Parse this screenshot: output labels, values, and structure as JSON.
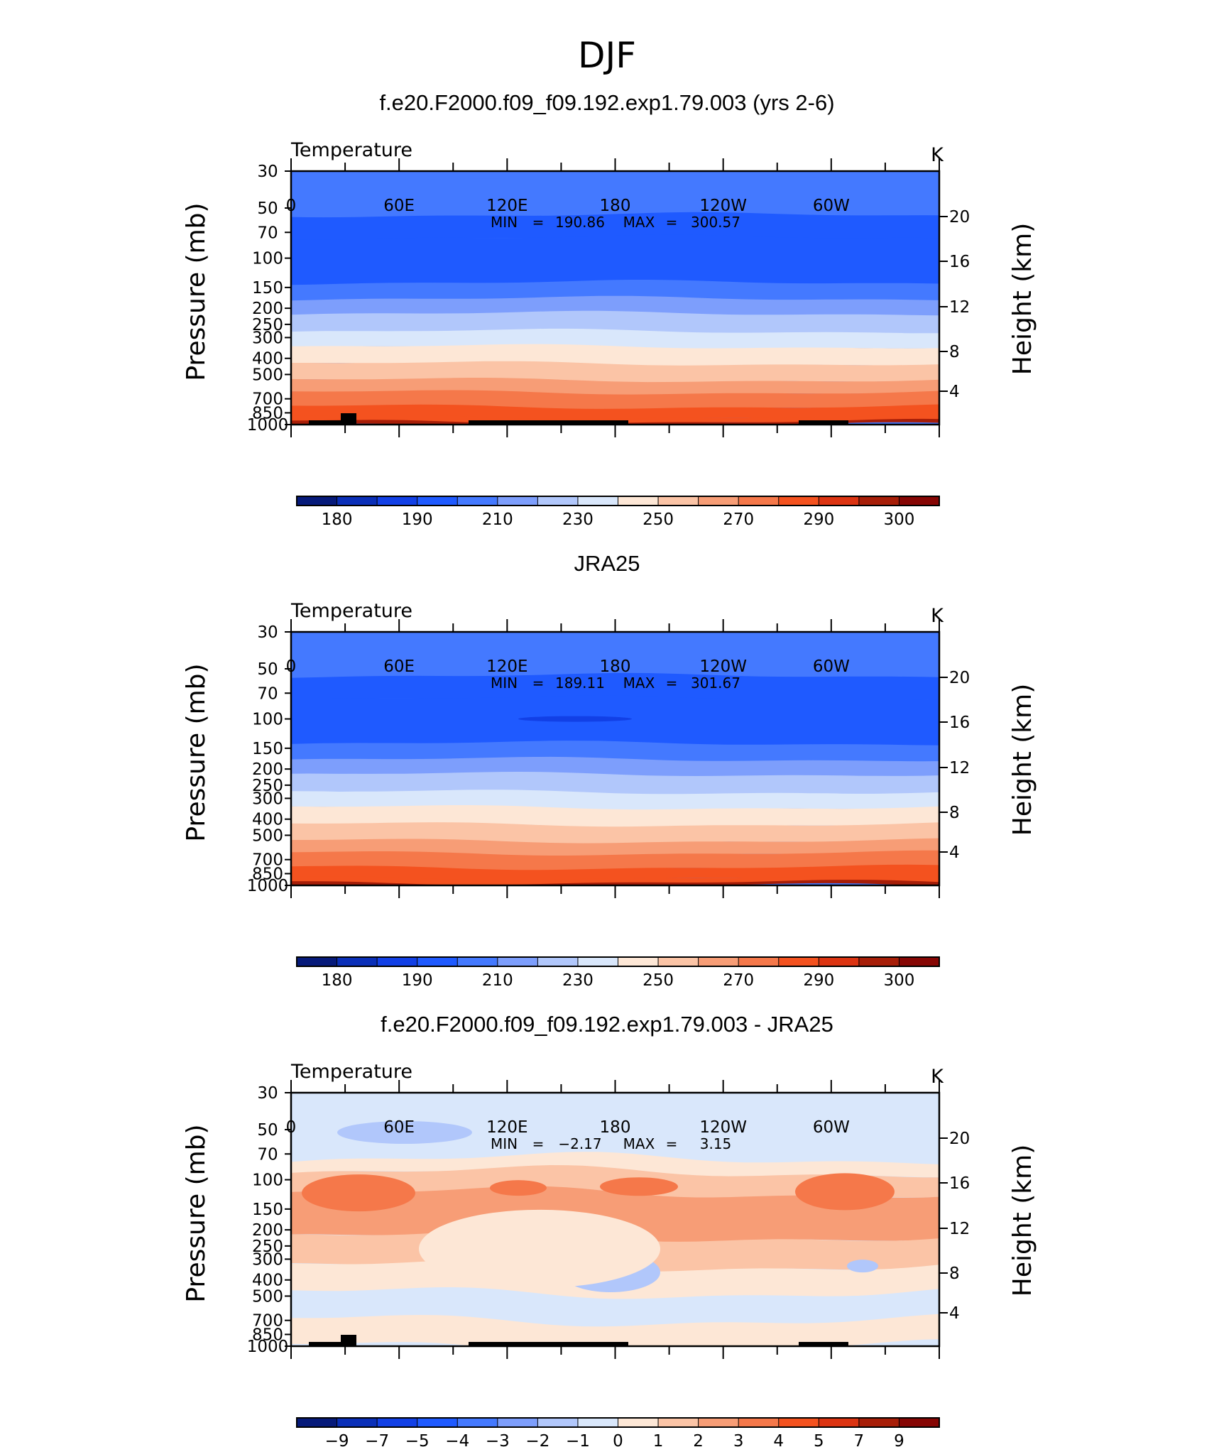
{
  "page_title": "DJF",
  "chart_data": [
    {
      "type": "contour",
      "title": "f.e20.F2000.f09_f09.192.exp1.79.003 (yrs 2-6)",
      "left_string": "Temperature",
      "right_string": "K",
      "ylabel": "Pressure (mb)",
      "ylabel_right": "Height (km)",
      "y_ticks": [
        "30",
        "50",
        "70",
        "100",
        "150",
        "200",
        "250",
        "300",
        "400",
        "500",
        "700",
        "850",
        "1000"
      ],
      "y_right_ticks": [
        "20",
        "16",
        "12",
        "8",
        "4"
      ],
      "x_ticks": [
        "0",
        "60E",
        "120E",
        "180",
        "120W",
        "60W"
      ],
      "stats": {
        "min_label": "MIN",
        "min": "190.86",
        "max_label": "MAX",
        "max": "300.57"
      },
      "levels": [
        175,
        180,
        185,
        190,
        200,
        210,
        220,
        230,
        240,
        250,
        260,
        270,
        280,
        290,
        295,
        300,
        305
      ],
      "colorbar_labels": [
        "180",
        "190",
        "210",
        "230",
        "250",
        "270",
        "290",
        "300"
      ],
      "colors": [
        "#061a7a",
        "#0a2fb8",
        "#1240e6",
        "#1f5aff",
        "#4479ff",
        "#7d9efc",
        "#b1c7fb",
        "#d9e7fb",
        "#fde7d6",
        "#fbc4a6",
        "#f79d76",
        "#f5784a",
        "#f4521f",
        "#dc3412",
        "#a71e08",
        "#860604"
      ],
      "band_bounds_p": [
        30,
        33,
        55,
        75,
        140,
        175,
        215,
        275,
        340,
        430,
        540,
        640,
        780,
        900,
        960,
        1000
      ],
      "band_values": [
        205,
        200,
        195,
        191,
        200,
        213,
        226,
        238,
        247,
        255,
        263,
        272,
        281,
        289,
        296
      ]
    },
    {
      "type": "contour",
      "title": "JRA25",
      "left_string": "Temperature",
      "right_string": "K",
      "ylabel": "Pressure (mb)",
      "ylabel_right": "Height (km)",
      "y_ticks": [
        "30",
        "50",
        "70",
        "100",
        "150",
        "200",
        "250",
        "300",
        "400",
        "500",
        "700",
        "850",
        "1000"
      ],
      "y_right_ticks": [
        "20",
        "16",
        "12",
        "8",
        "4"
      ],
      "x_ticks": [
        "0",
        "60E",
        "120E",
        "180",
        "120W",
        "60W"
      ],
      "stats": {
        "min_label": "MIN",
        "min": "189.11",
        "max_label": "MAX",
        "max": "301.67"
      },
      "levels": [
        175,
        180,
        185,
        190,
        200,
        210,
        220,
        230,
        240,
        250,
        260,
        270,
        280,
        290,
        295,
        300,
        305
      ],
      "colorbar_labels": [
        "180",
        "190",
        "210",
        "230",
        "250",
        "270",
        "290",
        "300"
      ],
      "colors": [
        "#061a7a",
        "#0a2fb8",
        "#1240e6",
        "#1f5aff",
        "#4479ff",
        "#7d9efc",
        "#b1c7fb",
        "#d9e7fb",
        "#fde7d6",
        "#fbc4a6",
        "#f79d76",
        "#f5784a",
        "#f4521f",
        "#dc3412",
        "#a71e08",
        "#860604"
      ],
      "band_bounds_p": [
        30,
        33,
        55,
        75,
        140,
        175,
        215,
        275,
        340,
        430,
        540,
        640,
        780,
        900,
        960,
        1000
      ],
      "band_values": [
        205,
        200,
        195,
        191,
        200,
        213,
        226,
        238,
        247,
        255,
        263,
        272,
        281,
        289,
        296
      ]
    },
    {
      "type": "contour",
      "title": "f.e20.F2000.f09_f09.192.exp1.79.003 - JRA25",
      "left_string": "Temperature",
      "right_string": "K",
      "ylabel": "Pressure (mb)",
      "ylabel_right": "Height (km)",
      "y_ticks": [
        "30",
        "50",
        "70",
        "100",
        "150",
        "200",
        "250",
        "300",
        "400",
        "500",
        "700",
        "850",
        "1000"
      ],
      "y_right_ticks": [
        "20",
        "16",
        "12",
        "8",
        "4"
      ],
      "x_ticks": [
        "0",
        "60E",
        "120E",
        "180",
        "120W",
        "60W"
      ],
      "stats": {
        "min_label": "MIN",
        "min": "−2.17",
        "max_label": "MAX",
        "max": "3.15"
      },
      "levels": [
        -12,
        -9,
        -7,
        -5,
        -4,
        -3,
        -2,
        -1,
        0,
        1,
        2,
        3,
        4,
        5,
        7,
        9,
        12
      ],
      "colorbar_labels": [
        "−9",
        "−7",
        "−5",
        "−4",
        "−3",
        "−2",
        "−1",
        "0",
        "1",
        "2",
        "3",
        "4",
        "5",
        "7",
        "9"
      ],
      "colors": [
        "#061a7a",
        "#0a2fb8",
        "#1240e6",
        "#1f5aff",
        "#4479ff",
        "#7d9efc",
        "#b1c7fb",
        "#d9e7fb",
        "#fde7d6",
        "#fbc4a6",
        "#f79d76",
        "#f5784a",
        "#f4521f",
        "#dc3412",
        "#a71e08",
        "#860604"
      ],
      "band_bounds_p": [
        30,
        75,
        90,
        120,
        220,
        330,
        480,
        700,
        1000
      ],
      "band_values": [
        -0.5,
        0.5,
        1.5,
        2.3,
        1.5,
        0.5,
        -0.5,
        0.5
      ]
    }
  ]
}
